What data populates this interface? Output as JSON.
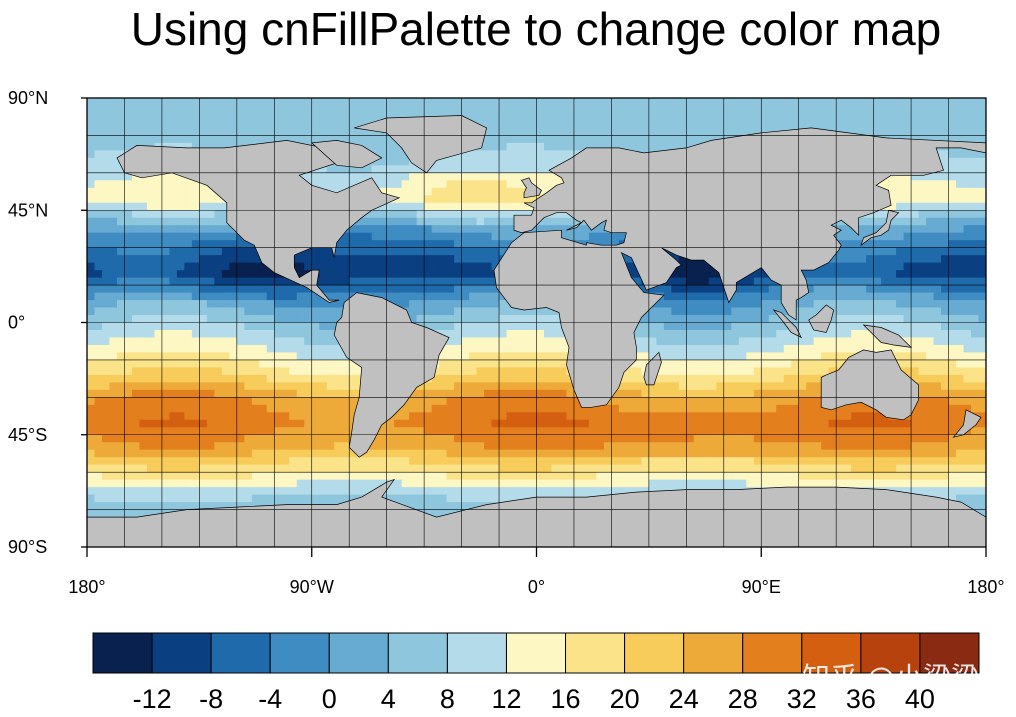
{
  "chart_data": {
    "type": "heatmap",
    "title": "Using cnFillPalette to change color map",
    "lat_tick_labels": [
      "90°N",
      "45°N",
      "0°",
      "45°S",
      "90°S"
    ],
    "lat_tick_values": [
      90,
      45,
      0,
      -45,
      -90
    ],
    "lon_tick_labels": [
      "180°",
      "90°W",
      "0°",
      "90°E",
      "180°"
    ],
    "lon_tick_values": [
      -180,
      -90,
      0,
      90,
      180
    ],
    "grid_spacing_deg": 15,
    "xlim": [
      -180,
      180
    ],
    "ylim": [
      -90,
      90
    ],
    "colorbar": {
      "levels": [
        -12,
        -8,
        -4,
        0,
        4,
        8,
        12,
        16,
        20,
        24,
        28,
        32,
        36,
        40
      ],
      "level_labels": [
        "-12",
        "-8",
        "-4",
        "0",
        "4",
        "8",
        "12",
        "16",
        "20",
        "24",
        "28",
        "32",
        "36",
        "40"
      ],
      "colors": [
        "#08214f",
        "#0a3f81",
        "#1f6aab",
        "#3f8cc3",
        "#67aad2",
        "#8ec6de",
        "#b3dbea",
        "#fdf7c4",
        "#fbe38a",
        "#f8cc5a",
        "#eeaa38",
        "#e47f1e",
        "#d45f10",
        "#b8420e",
        "#8a2a12"
      ]
    },
    "zonal_profile": {
      "lat": [
        90,
        80,
        70,
        60,
        50,
        40,
        30,
        20,
        10,
        0,
        -10,
        -20,
        -30,
        -40,
        -50,
        -60,
        -70,
        -80,
        -90
      ],
      "value": [
        6,
        5,
        7,
        10,
        14,
        2,
        -5,
        -10,
        0,
        6,
        12,
        18,
        27,
        30,
        26,
        17,
        8,
        5,
        5
      ]
    },
    "mask_color": "#c0c0c0",
    "watermark": "知乎 @小梁梁"
  }
}
